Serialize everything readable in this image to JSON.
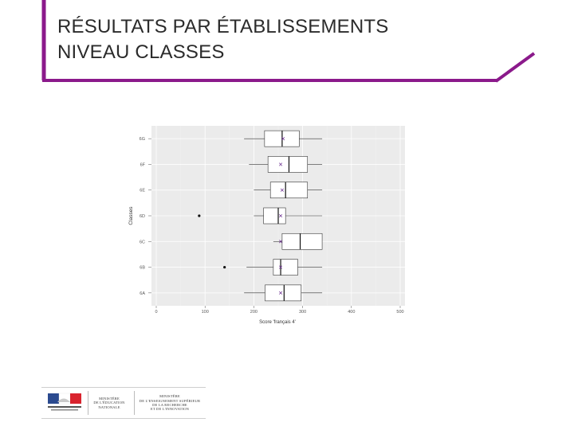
{
  "slide": {
    "title_line1": "RÉSULTATS PAR ÉTABLISSEMENTS",
    "title_line2": "NIVEAU CLASSES",
    "accent_color": "#8b1a8b"
  },
  "chart_data": {
    "type": "boxplot",
    "title": "",
    "xlabel": "Score 'français 4'",
    "ylabel": "Classes",
    "xlim": [
      0,
      500
    ],
    "xticks": [
      0,
      100,
      200,
      300,
      400,
      500
    ],
    "grid": true,
    "categories": [
      "6G",
      "6F",
      "6E",
      "6D",
      "6C",
      "6B",
      "6A"
    ],
    "boxes": [
      {
        "category": "6G",
        "min": 180,
        "q1": 222,
        "median": 258,
        "q3": 293,
        "max": 340,
        "mean": 260,
        "outliers": []
      },
      {
        "category": "6F",
        "min": 190,
        "q1": 229,
        "median": 272,
        "q3": 310,
        "max": 340,
        "mean": 255,
        "outliers": []
      },
      {
        "category": "6E",
        "min": 200,
        "q1": 234,
        "median": 265,
        "q3": 310,
        "max": 340,
        "mean": 258,
        "outliers": []
      },
      {
        "category": "6D",
        "min": 200,
        "q1": 220,
        "median": 250,
        "q3": 265,
        "max": 340,
        "mean": 255,
        "outliers": [
          88
        ]
      },
      {
        "category": "6C",
        "min": 240,
        "q1": 258,
        "median": 295,
        "q3": 340,
        "max": 340,
        "mean": 255,
        "outliers": []
      },
      {
        "category": "6B",
        "min": 185,
        "q1": 240,
        "median": 255,
        "q3": 290,
        "max": 340,
        "mean": 255,
        "outliers": [
          140
        ]
      },
      {
        "category": "6A",
        "min": 180,
        "q1": 223,
        "median": 262,
        "q3": 297,
        "max": 340,
        "mean": 255,
        "outliers": []
      }
    ]
  },
  "footer": {
    "logo1_line1": "MINISTÈRE",
    "logo1_line2": "DE L'ÉDUCATION",
    "logo1_line3": "NATIONALE",
    "logo2_line1": "MINISTÈRE",
    "logo2_line2": "DE L'ENSEIGNEMENT SUPÉRIEUR",
    "logo2_line3": "DE LA RECHERCHE",
    "logo2_line4": "ET DE L'INNOVATION"
  }
}
